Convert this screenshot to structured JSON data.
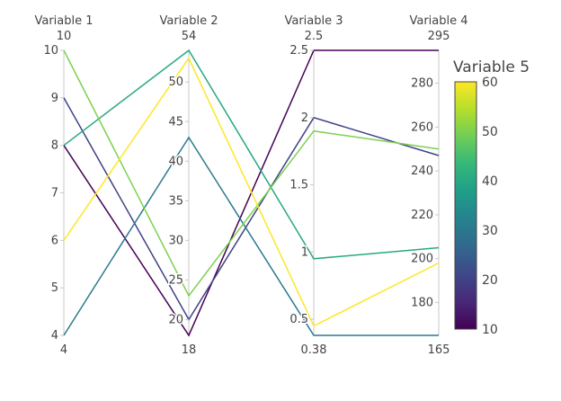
{
  "chart_data": {
    "type": "parallel_coordinates",
    "dimensions": [
      {
        "label": "Variable 1",
        "range": [
          4,
          10
        ],
        "range_labels": [
          "4",
          "10"
        ],
        "ticks": [
          4,
          5,
          6,
          7,
          8,
          9,
          10
        ],
        "tick_side": "left"
      },
      {
        "label": "Variable 2",
        "range": [
          18,
          54
        ],
        "range_labels": [
          "18",
          "54"
        ],
        "ticks": [
          20,
          25,
          30,
          35,
          40,
          45,
          50
        ],
        "tick_side": "left"
      },
      {
        "label": "Variable 3",
        "range": [
          0.38,
          2.5
        ],
        "range_labels": [
          "0.38",
          "2.5"
        ],
        "ticks": [
          0.5,
          1,
          1.5,
          2,
          2.5
        ],
        "tick_side": "left"
      },
      {
        "label": "Variable 4",
        "range": [
          165,
          295
        ],
        "range_labels": [
          "165",
          "295"
        ],
        "ticks": [
          180,
          200,
          220,
          240,
          260,
          280
        ],
        "tick_side": "left"
      }
    ],
    "lines": [
      {
        "values": [
          8,
          18,
          2.5,
          295
        ],
        "color_value": 10
      },
      {
        "values": [
          9,
          20,
          2.0,
          247
        ],
        "color_value": 20
      },
      {
        "values": [
          4,
          43,
          0.38,
          165
        ],
        "color_value": 30
      },
      {
        "values": [
          8,
          54,
          0.95,
          205
        ],
        "color_value": 40
      },
      {
        "values": [
          10,
          23,
          1.9,
          250
        ],
        "color_value": 50
      },
      {
        "values": [
          6,
          53,
          0.45,
          198
        ],
        "color_value": 60
      }
    ],
    "colorbar": {
      "title": "Variable 5",
      "range": [
        10,
        60
      ],
      "ticks": [
        10,
        20,
        30,
        40,
        50,
        60
      ],
      "colorscale": [
        "#440154",
        "#482878",
        "#3e4989",
        "#31688e",
        "#26828e",
        "#1f9e89",
        "#35b779",
        "#6ece58",
        "#b5de2b",
        "#fde725"
      ]
    }
  }
}
